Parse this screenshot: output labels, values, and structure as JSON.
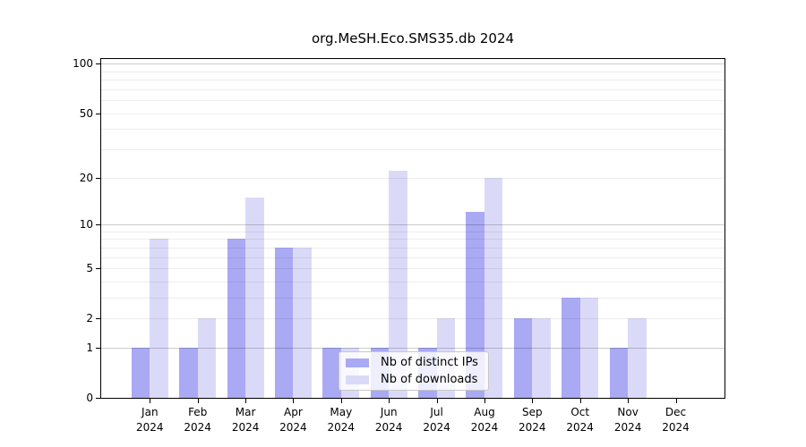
{
  "chart_data": {
    "type": "bar",
    "title": "org.MeSH.Eco.SMS35.db 2024",
    "categories": [
      "Jan",
      "Feb",
      "Mar",
      "Apr",
      "May",
      "Jun",
      "Jul",
      "Aug",
      "Sep",
      "Oct",
      "Nov",
      "Dec"
    ],
    "year_label": "2024",
    "series": [
      {
        "name": "Nb of distinct IPs",
        "color": "#a9a9f4",
        "values": [
          1,
          1,
          8,
          7,
          1,
          1,
          1,
          12,
          2,
          3,
          1,
          0
        ]
      },
      {
        "name": "Nb of downloads",
        "color": "#dadaf8",
        "values": [
          8,
          2,
          15,
          7,
          1,
          22,
          2,
          20,
          2,
          3,
          2,
          0
        ]
      }
    ],
    "yscale": "log10(1+v)",
    "y_ticks": [
      0,
      1,
      2,
      5,
      10,
      20,
      50,
      100
    ],
    "ylim": [
      0,
      107
    ],
    "grid": true,
    "legend_position": "bottom-center",
    "colors": {
      "spine": "#000000",
      "grid_major": "rgba(0,0,0,0.20)",
      "grid_minor": "rgba(0,0,0,0.07)",
      "tick_label": "#000000",
      "legend_border": "#c8c8c8",
      "legend_background": "rgba(255,255,255,0.8)"
    }
  }
}
